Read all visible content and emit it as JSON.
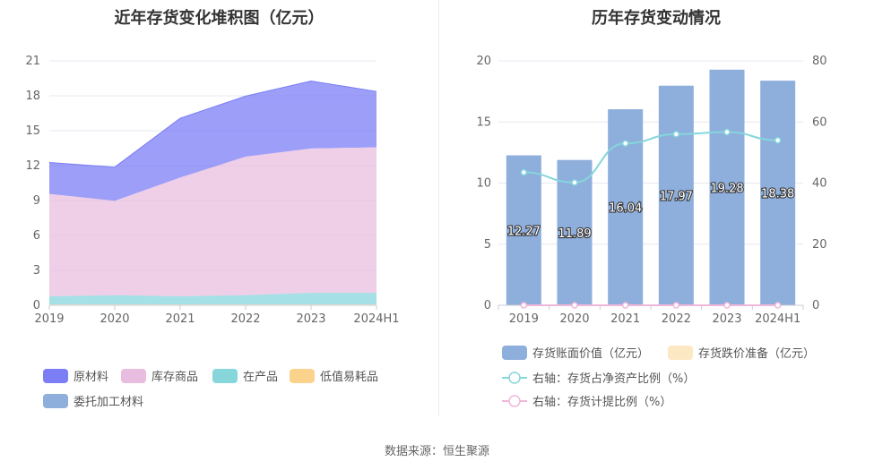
{
  "source": "数据来源：恒生聚源",
  "chart_data": [
    {
      "type": "area",
      "stacked": true,
      "title": "近年存货变化堆积图（亿元）",
      "categories": [
        "2019",
        "2020",
        "2021",
        "2022",
        "2023",
        "2024H1"
      ],
      "ylim": [
        0,
        21
      ],
      "yticks": [
        "0",
        "3",
        "6",
        "9",
        "12",
        "15",
        "18",
        "21"
      ],
      "grid": true,
      "legend_position": "bottom",
      "series": [
        {
          "name": "原材料",
          "color": "#7b7ef5",
          "values": [
            2.7,
            2.9,
            5.1,
            5.2,
            5.8,
            4.8
          ]
        },
        {
          "name": "库存商品",
          "color": "#e9bde0",
          "values": [
            8.8,
            8.1,
            10.2,
            11.9,
            12.4,
            12.5
          ]
        },
        {
          "name": "在产品",
          "color": "#86d6dc",
          "values": [
            0.7,
            0.8,
            0.7,
            0.8,
            1.0,
            1.0
          ]
        },
        {
          "name": "低值易耗品",
          "color": "#fbd38d",
          "values": [
            0.05,
            0.05,
            0.05,
            0.05,
            0.05,
            0.05
          ]
        },
        {
          "name": "委托加工材料",
          "color": "#8eaedc",
          "values": [
            0.02,
            0.02,
            0.02,
            0.02,
            0.02,
            0.02
          ]
        }
      ]
    },
    {
      "type": "bar",
      "title": "历年存货变动情况",
      "categories": [
        "2019",
        "2020",
        "2021",
        "2022",
        "2023",
        "2024H1"
      ],
      "ylim": [
        0,
        20
      ],
      "yticks": [
        "0",
        "5",
        "10",
        "15",
        "20"
      ],
      "y2lim": [
        0,
        80
      ],
      "y2ticks": [
        "0",
        "20",
        "40",
        "60",
        "80"
      ],
      "grid": true,
      "legend_position": "bottom",
      "series": [
        {
          "name": "存货账面价值（亿元）",
          "axis": "left",
          "kind": "bar",
          "color": "#8eaedc",
          "values": [
            12.27,
            11.89,
            16.04,
            17.97,
            19.28,
            18.38
          ],
          "labels": [
            "12.27",
            "11.89",
            "16.04",
            "17.97",
            "19.28",
            "18.38"
          ]
        },
        {
          "name": "存货跌价准备（亿元）",
          "axis": "left",
          "kind": "bar",
          "color": "#fde8c4",
          "values": [
            0,
            0,
            0,
            0,
            0,
            0
          ]
        },
        {
          "name": "右轴：存货占净资产比例（%）",
          "axis": "right",
          "kind": "line",
          "color": "#86d6dc",
          "values": [
            43.5,
            40.2,
            53,
            56,
            56.7,
            54
          ]
        },
        {
          "name": "右轴：存货计提比例（%）",
          "axis": "right",
          "kind": "line",
          "color": "#f0b7da",
          "values": [
            0,
            0,
            0,
            0,
            0,
            0
          ]
        }
      ]
    }
  ]
}
